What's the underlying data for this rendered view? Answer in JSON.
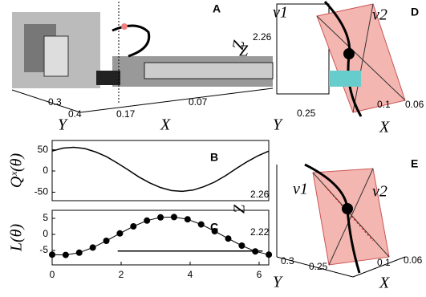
{
  "chart_data": [
    {
      "type": "line",
      "label": "B",
      "ylabel": "Qˣ(θ)",
      "xlim": [
        0,
        6.28
      ],
      "ylim": [
        -70,
        72
      ],
      "yticks": [
        50,
        0,
        -50
      ],
      "series": [
        {
          "color": "#000000",
          "marker": false,
          "x": [
            0,
            0.314,
            0.628,
            0.942,
            1.257,
            1.571,
            1.885,
            2.199,
            2.513,
            2.827,
            3.142,
            3.456,
            3.77,
            4.084,
            4.398,
            4.712,
            5.027,
            5.341,
            5.655,
            5.969,
            6.283
          ],
          "values": [
            47,
            54,
            56,
            53,
            45,
            34,
            19,
            3,
            -14,
            -28,
            -39,
            -46,
            -48,
            -45,
            -37,
            -26,
            -11,
            6,
            22,
            36,
            47
          ]
        }
      ]
    },
    {
      "type": "line",
      "label": "C",
      "ylabel": "L(θ)",
      "xlim": [
        0,
        6.28
      ],
      "ylim": [
        -9.5,
        7.5
      ],
      "yticks": [
        5,
        0,
        -5
      ],
      "xticks": [
        0,
        2,
        4,
        6
      ],
      "series": [
        {
          "color": "#000000",
          "marker": true,
          "x": [
            0,
            0.393,
            0.785,
            1.178,
            1.571,
            1.963,
            2.356,
            2.749,
            3.142,
            3.534,
            3.927,
            4.32,
            4.712,
            5.105,
            5.498,
            5.89,
            6.283
          ],
          "values": [
            -6.3,
            -6.4,
            -5.7,
            -4.1,
            -2,
            0.3,
            2.5,
            4.3,
            5.3,
            5.4,
            4.7,
            3.1,
            1,
            -1.3,
            -3.5,
            -5.3,
            -6.3
          ]
        },
        {
          "color": "#000000",
          "marker": false,
          "x": [
            1.9,
            6.1
          ],
          "values": [
            -5.2,
            -5.2
          ]
        }
      ]
    }
  ],
  "panels": {
    "A": {
      "label": "A",
      "z": "Z",
      "y": "Y",
      "x": "X",
      "yt": [
        "0.3",
        "0.4"
      ],
      "xt": [
        "0.17",
        "0.07"
      ]
    },
    "D": {
      "label": "D",
      "v1": "v1",
      "v2": "v2",
      "zt": "2.26",
      "z": "Z",
      "y": "Y",
      "x": "X",
      "yt": "0.25",
      "xt": [
        "0.1",
        "0.06"
      ]
    },
    "E": {
      "label": "E",
      "v1": "v1",
      "v2": "v2",
      "zt": [
        "2.26",
        "2.22"
      ],
      "z": "Z",
      "y": "Y",
      "x": "X",
      "yt": [
        "0.3",
        "0.25"
      ],
      "xt": [
        "0.1",
        "0.06"
      ]
    }
  }
}
